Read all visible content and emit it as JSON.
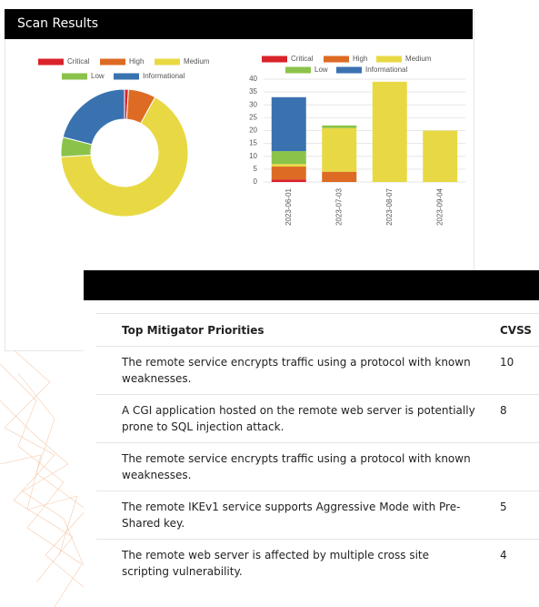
{
  "header": {
    "title": "Scan Results"
  },
  "chart_data": [
    {
      "type": "donut",
      "categories": [
        "Critical",
        "High",
        "Medium",
        "Low",
        "Informational"
      ],
      "values": [
        1,
        7,
        66,
        5,
        21
      ],
      "colors": [
        "#d9232a",
        "#dd6b24",
        "#e8d944",
        "#8bc34a",
        "#3a72b0"
      ]
    },
    {
      "type": "stacked-bar",
      "categories": [
        "2023-06-01",
        "2023-07-03",
        "2023-08-07",
        "2023-09-04"
      ],
      "series": [
        {
          "name": "Critical",
          "color": "#d9232a",
          "values": [
            1,
            0,
            0,
            0
          ]
        },
        {
          "name": "High",
          "color": "#dd6b24",
          "values": [
            5,
            4,
            0,
            0
          ]
        },
        {
          "name": "Medium",
          "color": "#e8d944",
          "values": [
            1,
            17,
            39,
            20
          ]
        },
        {
          "name": "Low",
          "color": "#8bc34a",
          "values": [
            5,
            1,
            0,
            0
          ]
        },
        {
          "name": "Informational",
          "color": "#3a72b0",
          "values": [
            21,
            0,
            0,
            0
          ]
        }
      ],
      "ylim": [
        0,
        40
      ],
      "yticks": [
        0,
        5,
        10,
        15,
        20,
        25,
        30,
        35,
        40
      ],
      "grid": true
    }
  ],
  "table": {
    "header": [
      "Top Mitigator Priorities",
      "CVSS"
    ],
    "rows": [
      [
        "The remote service encrypts traffic using a protocol with known weaknesses.",
        10
      ],
      [
        "A CGI application hosted on the remote web server is potentially prone to SQL injection attack.",
        8
      ],
      [
        "The remote service encrypts traffic using a protocol with known weaknesses.",
        null
      ],
      [
        "The remote IKEv1 service supports Aggressive Mode with Pre-Shared key.",
        5
      ],
      [
        "The remote web server is affected by multiple cross site scripting vulnerability.",
        4
      ]
    ]
  }
}
